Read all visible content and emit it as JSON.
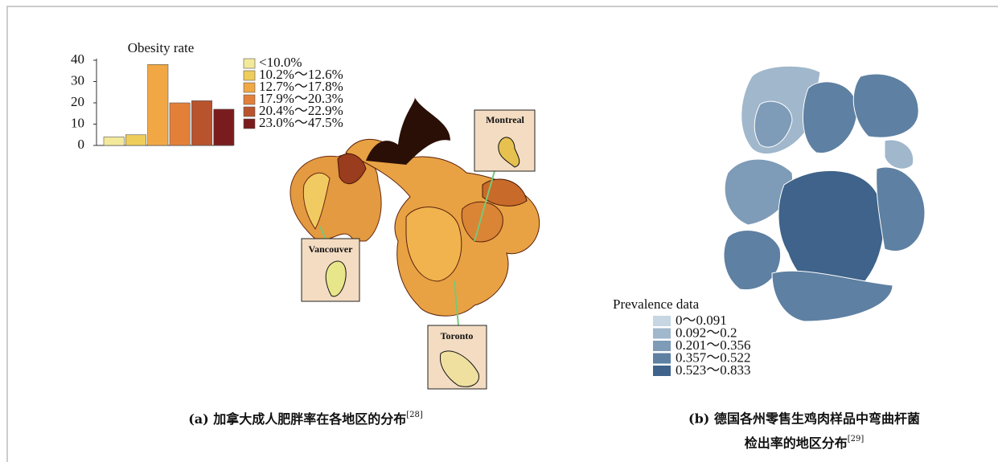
{
  "chart_data": {
    "type": "bar",
    "title": "Obesity rate",
    "categories": [
      "<10.0%",
      "10.2%～12.6%",
      "12.7%～17.8%",
      "17.9%～20.3%",
      "20.4%～22.9%",
      "23.0%～47.5%"
    ],
    "values": [
      4,
      5,
      38,
      20,
      21,
      17
    ],
    "colors": [
      "#f3e99a",
      "#efcd5a",
      "#f1a844",
      "#e2803a",
      "#b9532e",
      "#7a1c1d"
    ],
    "ylim": [
      0,
      40
    ],
    "yticks": [
      0,
      10,
      20,
      30,
      40
    ]
  },
  "map_a": {
    "labels": [
      "Vancouver",
      "Montreal",
      "Toronto"
    ],
    "caption": {
      "text": "(a) 加拿大成人肥胖率在各地区的分布",
      "ref": "[28]"
    }
  },
  "map_b": {
    "legend_title": "Prevalence data",
    "legend": [
      {
        "label": "0～0.091",
        "color": "#c6d6e2"
      },
      {
        "label": "0.092～0.2",
        "color": "#a0b7cc"
      },
      {
        "label": "0.201～0.356",
        "color": "#7e9bb7"
      },
      {
        "label": "0.357～0.522",
        "color": "#5e80a2"
      },
      {
        "label": "0.523～0.833",
        "color": "#3f638a"
      }
    ],
    "caption": {
      "line1": "(b) 德国各州零售生鸡肉样品中弯曲杆菌",
      "line2": "检出率的地区分布",
      "ref": "[29]"
    }
  }
}
